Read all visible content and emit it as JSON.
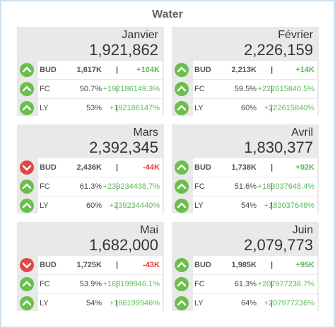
{
  "title": "Water",
  "separator": "|",
  "cards": [
    {
      "month": "Janvier",
      "value": "1,921,862",
      "rows": [
        {
          "label": "BUD",
          "value": "1,817K",
          "delta": "+104K",
          "trend": "up"
        },
        {
          "label": "FC",
          "value": "50.7%",
          "delta": "+192186149.3%",
          "trend": "up"
        },
        {
          "label": "LY",
          "value": "53%",
          "delta": "+192186147%",
          "trend": "up"
        }
      ]
    },
    {
      "month": "Février",
      "value": "2,226,159",
      "rows": [
        {
          "label": "BUD",
          "value": "2,213K",
          "delta": "+14K",
          "trend": "up"
        },
        {
          "label": "FC",
          "value": "59.5%",
          "delta": "+222615840.5%",
          "trend": "up"
        },
        {
          "label": "LY",
          "value": "60%",
          "delta": "+222615840%",
          "trend": "up"
        }
      ]
    },
    {
      "month": "Mars",
      "value": "2,392,345",
      "rows": [
        {
          "label": "BUD",
          "value": "2,436K",
          "delta": "-44K",
          "trend": "down"
        },
        {
          "label": "FC",
          "value": "61.3%",
          "delta": "+239234438.7%",
          "trend": "up"
        },
        {
          "label": "LY",
          "value": "60%",
          "delta": "+239234440%",
          "trend": "up"
        }
      ]
    },
    {
      "month": "Avril",
      "value": "1,830,377",
      "rows": [
        {
          "label": "BUD",
          "value": "1,738K",
          "delta": "+92K",
          "trend": "up"
        },
        {
          "label": "FC",
          "value": "51.6%",
          "delta": "+183037648.4%",
          "trend": "up"
        },
        {
          "label": "LY",
          "value": "54%",
          "delta": "+183037646%",
          "trend": "up"
        }
      ]
    },
    {
      "month": "Mai",
      "value": "1,682,000",
      "rows": [
        {
          "label": "BUD",
          "value": "1,725K",
          "delta": "-43K",
          "trend": "down"
        },
        {
          "label": "FC",
          "value": "53.9%",
          "delta": "+168199946.1%",
          "trend": "up"
        },
        {
          "label": "LY",
          "value": "54%",
          "delta": "+168199946%",
          "trend": "up"
        }
      ]
    },
    {
      "month": "Juin",
      "value": "2,079,773",
      "rows": [
        {
          "label": "BUD",
          "value": "1,985K",
          "delta": "+95K",
          "trend": "up"
        },
        {
          "label": "FC",
          "value": "61.3%",
          "delta": "+207977238.7%",
          "trend": "up"
        },
        {
          "label": "LY",
          "value": "64%",
          "delta": "+207977236%",
          "trend": "up"
        }
      ]
    }
  ]
}
